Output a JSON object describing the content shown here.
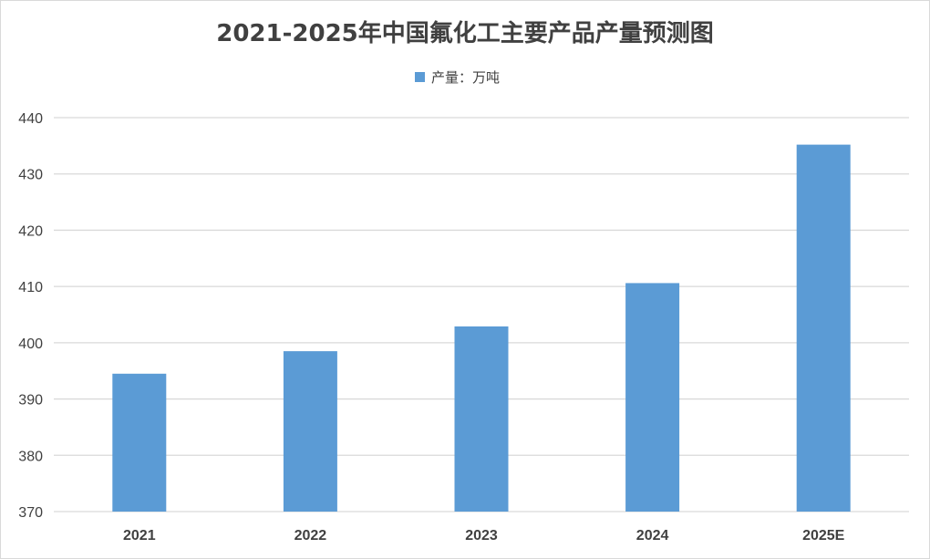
{
  "chart_data": {
    "type": "bar",
    "title": "2021-2025年中国氟化工主要产品产量预测图",
    "categories": [
      "2021",
      "2022",
      "2023",
      "2024",
      "2025E"
    ],
    "series": [
      {
        "name": "产量：万吨",
        "color": "#5b9bd5",
        "values": [
          394.5,
          398.5,
          402.9,
          410.6,
          435.2
        ]
      }
    ],
    "yticks": [
      "370",
      "380",
      "390",
      "400",
      "410",
      "420",
      "430",
      "440"
    ],
    "ylim": [
      370,
      440
    ],
    "grid": true,
    "legend_position": "top-center"
  }
}
